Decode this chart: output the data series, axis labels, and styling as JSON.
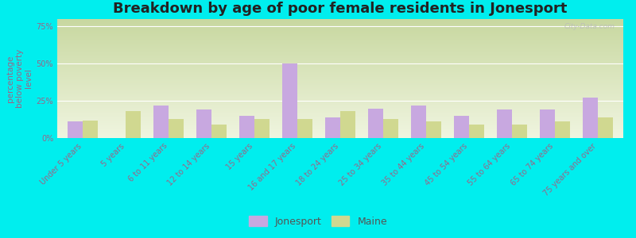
{
  "title": "Breakdown by age of poor female residents in Jonesport",
  "ylabel": "percentage\nbelow poverty\nlevel",
  "categories": [
    "Under 5 years",
    "5 years",
    "6 to 11 years",
    "12 to 14 years",
    "15 years",
    "16 and 17 years",
    "18 to 24 years",
    "25 to 34 years",
    "35 to 44 years",
    "45 to 54 years",
    "55 to 64 years",
    "65 to 74 years",
    "75 years and over"
  ],
  "jonesport": [
    11,
    0,
    22,
    19,
    15,
    50,
    14,
    20,
    22,
    15,
    19,
    19,
    27
  ],
  "maine": [
    12,
    18,
    13,
    9,
    13,
    13,
    18,
    13,
    11,
    9,
    9,
    11,
    14
  ],
  "jonesport_color": "#c8a8e0",
  "maine_color": "#d0d890",
  "outer_bg": "#00eeee",
  "plot_bg_top": "#c8d8a0",
  "plot_bg_bottom": "#f0f5e0",
  "yticks": [
    0,
    25,
    50,
    75
  ],
  "ytick_labels": [
    "0%",
    "25%",
    "50%",
    "75%"
  ],
  "ylim": [
    0,
    80
  ],
  "bar_width": 0.35,
  "title_fontsize": 13,
  "ylabel_fontsize": 7.5,
  "tick_fontsize": 7,
  "legend_jonesport": "Jonesport",
  "legend_maine": "Maine",
  "watermark": "City-Data.com",
  "grid_color": "#ffffff",
  "tick_color": "#996688",
  "label_color": "#996688"
}
